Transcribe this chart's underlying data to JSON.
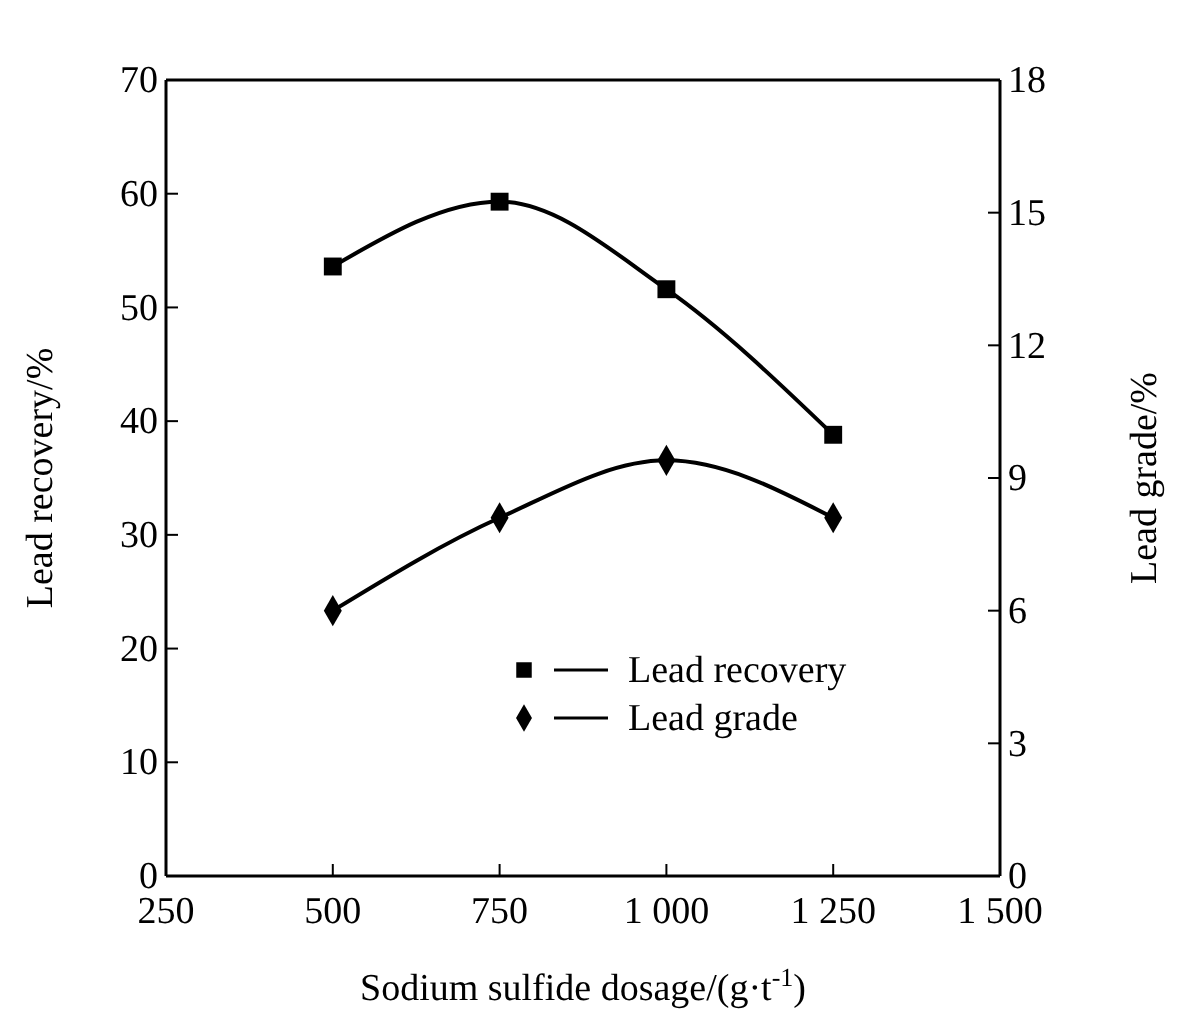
{
  "chart_data": {
    "type": "line",
    "xlabel": "Sodium sulfide dosage/(g·t$^{-1}$)",
    "ylabel": "Lead recovery/%",
    "y2label": "Lead grade/%",
    "x": [
      500,
      750,
      1000,
      1250
    ],
    "series": [
      {
        "name": "Lead recovery",
        "color": "#000000",
        "values": [
          53.6,
          59.3,
          51.6,
          38.8
        ],
        "marker": "square"
      },
      {
        "name": "Lead grade",
        "color": "#000000",
        "values": [
          6.0,
          8.1,
          9.4,
          8.1
        ],
        "marker": "diamond",
        "axis": "y2"
      }
    ],
    "xlim": [
      250,
      1500
    ],
    "xticks": [
      250,
      500,
      750,
      {
        "value": 1000,
        "label": "1 000"
      },
      {
        "value": 1250,
        "label": "1 250"
      },
      {
        "value": 1500,
        "label": "1 500"
      }
    ],
    "ylim": [
      0,
      70
    ],
    "yticks": [
      0,
      10,
      20,
      30,
      40,
      50,
      60,
      70
    ],
    "y2lim": [
      0,
      18
    ],
    "y2ticks": [
      0,
      3,
      6,
      9,
      12,
      15,
      18
    ],
    "legend": "bottom right",
    "line_style": "solid"
  }
}
